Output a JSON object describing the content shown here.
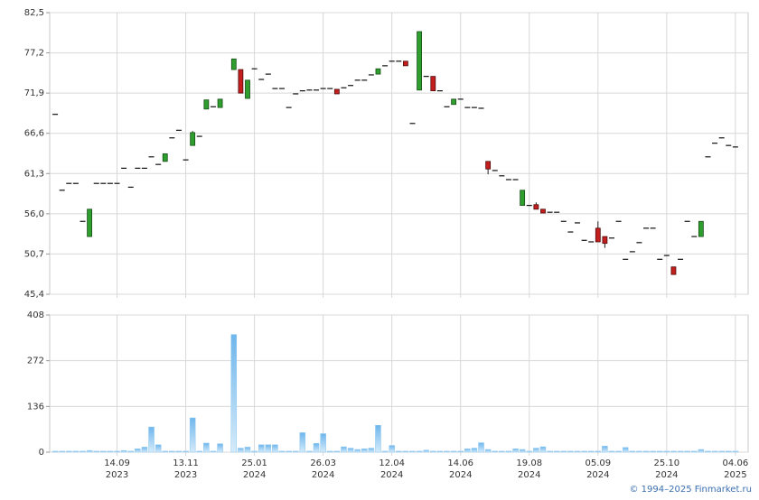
{
  "chart_data": {
    "type": "candlestick",
    "credit": "© 1994–2025 Finmarket.ru",
    "x": [
      0,
      1,
      2,
      3,
      4,
      5,
      6,
      7,
      8,
      9,
      10,
      11,
      12,
      13,
      14,
      15,
      16,
      17,
      18,
      19,
      20,
      21,
      22,
      23,
      24,
      26,
      27,
      28,
      29,
      30,
      31,
      32,
      33,
      34,
      35,
      36,
      37,
      38,
      39,
      40,
      41,
      42,
      43,
      44,
      45,
      46,
      47,
      48,
      49,
      50,
      51,
      52,
      53,
      54,
      55,
      56,
      57,
      58,
      59,
      60,
      61,
      62,
      63,
      64,
      65,
      66,
      67,
      68,
      69,
      70,
      71,
      72,
      73,
      74,
      75,
      76,
      77,
      78,
      79,
      80,
      81,
      82,
      83,
      84,
      85,
      86,
      87,
      88,
      89,
      90,
      91,
      92,
      93,
      94,
      95,
      96,
      97,
      98,
      99
    ],
    "open": [
      69.1,
      59.1,
      60,
      60,
      55,
      53,
      60,
      60,
      60,
      60,
      62,
      59.5,
      62,
      62,
      63.5,
      62.5,
      62.9,
      66,
      67,
      63.1,
      65,
      66.2,
      69.8,
      70.1,
      70,
      75,
      75,
      71.2,
      75.1,
      73.7,
      74.4,
      72.5,
      72.5,
      70,
      71.8,
      72.2,
      72.3,
      72.3,
      72.5,
      72.5,
      72.4,
      72.6,
      72.9,
      73.6,
      73.6,
      74.3,
      74.4,
      75.5,
      76.1,
      76.1,
      76.1,
      67.9,
      72.3,
      74.1,
      74.1,
      72.2,
      70.1,
      70.4,
      71.1,
      70,
      70,
      69.9,
      62.9,
      61.7,
      61,
      60.5,
      60.5,
      57.1,
      57.1,
      57.2,
      56.6,
      56.2,
      56.2,
      55,
      53.6,
      54.8,
      52.5,
      52.3,
      54.1,
      53,
      52.8,
      55,
      50,
      51,
      52.2,
      54.1,
      54.1,
      50,
      50.5,
      49,
      50,
      55,
      53,
      53,
      63.5,
      65.3,
      66,
      65,
      64.8
    ],
    "high": [
      69.1,
      59.1,
      60,
      60,
      55,
      56.6,
      60,
      60,
      60,
      60,
      62,
      59.5,
      62,
      62,
      63.5,
      62.5,
      63.9,
      66,
      67,
      63.1,
      66.9,
      66.2,
      71,
      70.1,
      71.1,
      76.4,
      75,
      73.6,
      75.1,
      73.7,
      74.4,
      72.5,
      72.5,
      70,
      71.8,
      72.2,
      72.3,
      72.3,
      72.5,
      72.5,
      72.4,
      72.6,
      72.9,
      73.6,
      73.6,
      74.3,
      75.1,
      75.5,
      76.1,
      76.1,
      76.1,
      67.9,
      80,
      74.1,
      74.1,
      72.2,
      70.1,
      71.1,
      71.1,
      70,
      70,
      69.9,
      62.9,
      61.7,
      61,
      60.5,
      60.5,
      59.1,
      57.1,
      57.5,
      56.6,
      56.2,
      56.2,
      55,
      53.6,
      54.8,
      52.5,
      52.3,
      55,
      53,
      52.8,
      55,
      50,
      51,
      52.2,
      54.1,
      54.1,
      50,
      50.5,
      49,
      50,
      55,
      53,
      55,
      63.5,
      65.3,
      66,
      65,
      64.8
    ],
    "low": [
      69.1,
      59.1,
      60,
      60,
      55,
      53,
      60,
      60,
      60,
      60,
      62,
      59.5,
      62,
      62,
      63.5,
      62.5,
      62.9,
      66,
      67,
      63.1,
      65,
      66.2,
      69.8,
      70.1,
      70,
      75,
      71.9,
      71.2,
      75.1,
      73.7,
      74.4,
      72.5,
      72.5,
      70,
      71.8,
      72.2,
      72.3,
      72.3,
      72.5,
      72.5,
      71.8,
      72.6,
      72.9,
      73.6,
      73.6,
      74.3,
      74.4,
      75.5,
      76.1,
      76.1,
      75.5,
      67.9,
      72.3,
      74.1,
      72.2,
      72.2,
      70.1,
      70.4,
      71.1,
      70,
      70,
      69.9,
      61.2,
      61.7,
      61,
      60.5,
      60.5,
      57.1,
      57.1,
      56.6,
      56.1,
      56.2,
      56.2,
      55,
      53.6,
      54.8,
      52.5,
      52.3,
      52.3,
      51.5,
      52.8,
      55,
      50,
      51,
      52.2,
      54.1,
      54.1,
      50,
      50.5,
      48,
      50,
      55,
      53,
      53,
      63.5,
      65.3,
      66,
      65,
      64.8
    ],
    "close": [
      69.1,
      59.1,
      60,
      60,
      55,
      56.6,
      60,
      60,
      60,
      60,
      62,
      59.5,
      62,
      62,
      63.5,
      62.5,
      63.9,
      66,
      67,
      63.1,
      66.7,
      66.2,
      71,
      70.1,
      71.1,
      76.4,
      71.9,
      73.6,
      75.1,
      73.7,
      74.4,
      72.5,
      72.5,
      70,
      71.8,
      72.2,
      72.3,
      72.3,
      72.5,
      72.5,
      71.8,
      72.6,
      72.9,
      73.6,
      73.6,
      74.3,
      75.1,
      75.5,
      76.1,
      76.1,
      75.5,
      67.9,
      80,
      74.1,
      72.2,
      72.2,
      70.1,
      71.1,
      71.1,
      70,
      70,
      69.9,
      61.9,
      61.7,
      61,
      60.5,
      60.5,
      59.1,
      57.1,
      56.6,
      56.1,
      56.2,
      56.2,
      55,
      53.6,
      54.8,
      52.5,
      52.3,
      52.3,
      52.1,
      52.8,
      55,
      50,
      51,
      52.2,
      54.1,
      54.1,
      50,
      50.5,
      48,
      50,
      55,
      53,
      55,
      63.5,
      65.3,
      66,
      65,
      64.8
    ],
    "volume": [
      3,
      3,
      3,
      3,
      3,
      5,
      3,
      3,
      3,
      3,
      5,
      3,
      10,
      15,
      75,
      22,
      3,
      3,
      3,
      3,
      102,
      3,
      27,
      3,
      25,
      350,
      12,
      15,
      3,
      22,
      22,
      22,
      3,
      3,
      3,
      58,
      3,
      26,
      55,
      3,
      3,
      16,
      12,
      8,
      10,
      12,
      80,
      3,
      20,
      3,
      3,
      3,
      3,
      6,
      3,
      3,
      3,
      3,
      3,
      10,
      12,
      28,
      8,
      3,
      3,
      3,
      10,
      8,
      3,
      12,
      16,
      3,
      3,
      3,
      3,
      3,
      3,
      3,
      3,
      18,
      3,
      3,
      14,
      3,
      3,
      3,
      3,
      3,
      3,
      3,
      3,
      3,
      3,
      8,
      3,
      3,
      3,
      3,
      3
    ],
    "up_color": "#2e9e2e",
    "down_color": "#c41e1e",
    "volume_color": "#8ec8f0",
    "xlim": [
      -0.8,
      100.2
    ],
    "xticks": [
      {
        "value": 9,
        "label": "14.09",
        "sublabel": "2023"
      },
      {
        "value": 19,
        "label": "13.11",
        "sublabel": "2023"
      },
      {
        "value": 29,
        "label": "25.01",
        "sublabel": "2024"
      },
      {
        "value": 39,
        "label": "26.03",
        "sublabel": "2024"
      },
      {
        "value": 49,
        "label": "12.04",
        "sublabel": "2024"
      },
      {
        "value": 59,
        "label": "14.06",
        "sublabel": "2024"
      },
      {
        "value": 69,
        "label": "19.08",
        "sublabel": "2024"
      },
      {
        "value": 79,
        "label": "05.09",
        "sublabel": "2024"
      },
      {
        "value": 89,
        "label": "25.10",
        "sublabel": "2024"
      },
      {
        "value": 99,
        "label": "04.06",
        "sublabel": "2025"
      }
    ],
    "ylim": [
      45.4,
      82.5
    ],
    "yticks": [
      {
        "value": 45.4,
        "label": "45,4"
      },
      {
        "value": 50.7,
        "label": "50,7"
      },
      {
        "value": 56.0,
        "label": "56,0"
      },
      {
        "value": 61.3,
        "label": "61,3"
      },
      {
        "value": 66.6,
        "label": "66,6"
      },
      {
        "value": 71.9,
        "label": "71,9"
      },
      {
        "value": 77.2,
        "label": "77,2"
      },
      {
        "value": 82.5,
        "label": "82,5"
      }
    ],
    "y2lim": [
      0,
      408
    ],
    "y2ticks": [
      0,
      136,
      272,
      408
    ],
    "grid": true
  }
}
